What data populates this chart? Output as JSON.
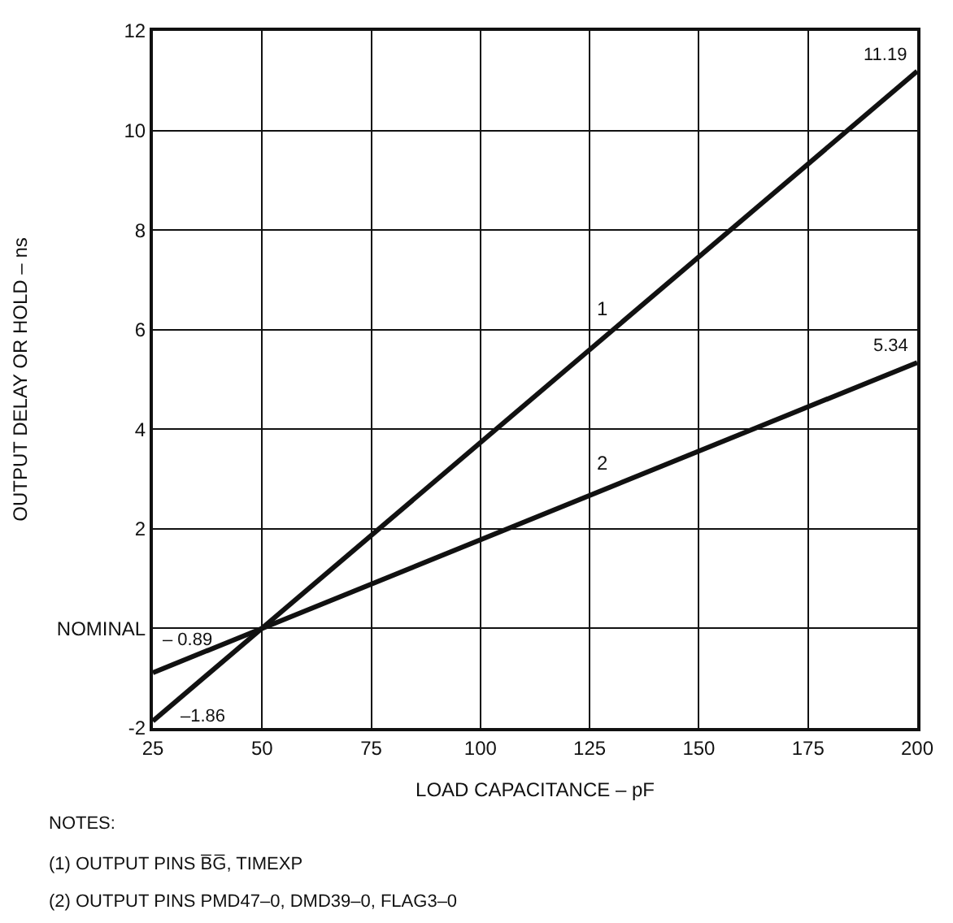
{
  "chart_data": {
    "type": "line",
    "xlabel": "LOAD CAPACITANCE – pF",
    "ylabel": "OUTPUT DELAY OR HOLD – ns",
    "x": [
      25,
      200
    ],
    "series": [
      {
        "name": "1",
        "color": "#111111",
        "values": [
          -1.86,
          11.19
        ],
        "value_labels": [
          "–1.86",
          "11.19"
        ]
      },
      {
        "name": "2",
        "color": "#111111",
        "values": [
          -0.89,
          5.34
        ],
        "value_labels": [
          "– 0.89",
          "5.34"
        ]
      }
    ],
    "xlim": [
      25,
      200
    ],
    "xticks": [
      25,
      50,
      75,
      100,
      125,
      150,
      175,
      200
    ],
    "ylim": [
      -2,
      12
    ],
    "yticks": [
      -2,
      {
        "value": 0,
        "label": "NOMINAL"
      },
      2,
      4,
      6,
      8,
      10,
      12
    ],
    "grid": true,
    "legend": false,
    "marker": "none",
    "line_style": "solid",
    "annotations": [
      "NOTES:",
      "(1) OUTPUT PINS B̅G̅, TIMEXP",
      "(2) OUTPUT PINS PMD47–0, DMD39–0, FLAG3–0"
    ]
  }
}
